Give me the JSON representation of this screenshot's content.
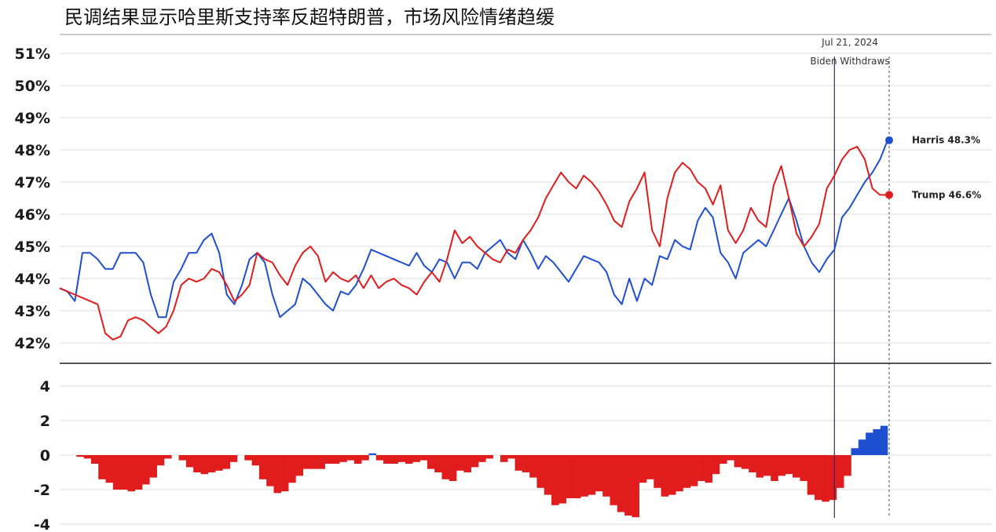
{
  "title": "民调结果显示哈里斯支持率反超特朗普，市场风险情绪趋缓",
  "chart_data": [
    {
      "type": "line",
      "title": "民调结果显示哈里斯支持率反超特朗普，市场风险情绪趋缓",
      "ylim": [
        42,
        51
      ],
      "yticks": [
        "51%",
        "50%",
        "49%",
        "48%",
        "47%",
        "46%",
        "45%",
        "44%",
        "43%",
        "42%"
      ],
      "grid": true,
      "x_points": 110,
      "annotation": {
        "date": "Jul 21, 2024",
        "label": "Biden Withdraws",
        "index": 102
      },
      "series": [
        {
          "name": "Harris",
          "color": "#1f4fd1",
          "end_label": "Harris 48.3%",
          "values": [
            43.7,
            43.6,
            43.3,
            44.8,
            44.8,
            44.6,
            44.3,
            44.3,
            44.8,
            44.8,
            44.8,
            44.5,
            43.5,
            42.8,
            42.8,
            43.9,
            44.3,
            44.8,
            44.8,
            45.2,
            45.4,
            44.8,
            43.5,
            43.2,
            43.8,
            44.6,
            44.8,
            44.5,
            43.5,
            42.8,
            43.0,
            43.2,
            44.0,
            43.8,
            43.5,
            43.2,
            43.0,
            43.6,
            43.5,
            43.8,
            44.3,
            44.9,
            44.8,
            44.7,
            44.6,
            44.5,
            44.4,
            44.8,
            44.4,
            44.2,
            44.6,
            44.5,
            44.0,
            44.5,
            44.5,
            44.3,
            44.8,
            45.0,
            45.2,
            44.8,
            44.6,
            45.2,
            44.8,
            44.3,
            44.7,
            44.5,
            44.2,
            43.9,
            44.3,
            44.7,
            44.6,
            44.5,
            44.2,
            43.5,
            43.2,
            44.0,
            43.3,
            44.0,
            43.8,
            44.7,
            44.6,
            45.2,
            45.0,
            44.9,
            45.8,
            46.2,
            45.9,
            44.8,
            44.5,
            44.0,
            44.8,
            45.0,
            45.2,
            45.0,
            45.5,
            46.0,
            46.5,
            45.8,
            45.0,
            44.5,
            44.2,
            44.6,
            44.9,
            45.9,
            46.2,
            46.6,
            47.0,
            47.3,
            47.7,
            48.3
          ],
          "final": 48.3
        },
        {
          "name": "Trump",
          "color": "#e01c1c",
          "end_label": "Trump 46.6%",
          "values": [
            43.7,
            43.6,
            43.5,
            43.4,
            43.3,
            43.2,
            42.3,
            42.1,
            42.2,
            42.7,
            42.8,
            42.7,
            42.5,
            42.3,
            42.5,
            43.0,
            43.8,
            44.0,
            43.9,
            44.0,
            44.3,
            44.2,
            43.8,
            43.3,
            43.5,
            43.8,
            44.8,
            44.6,
            44.5,
            44.1,
            43.8,
            44.4,
            44.8,
            45.0,
            44.7,
            43.9,
            44.2,
            44.0,
            43.9,
            44.1,
            43.7,
            44.1,
            43.7,
            43.9,
            44.0,
            43.8,
            43.7,
            43.5,
            43.9,
            44.2,
            43.9,
            44.6,
            45.5,
            45.1,
            45.3,
            45.0,
            44.8,
            44.6,
            44.5,
            44.9,
            44.8,
            45.2,
            45.5,
            45.9,
            46.5,
            46.9,
            47.3,
            47.0,
            46.8,
            47.2,
            47.0,
            46.7,
            46.3,
            45.8,
            45.6,
            46.4,
            46.8,
            47.3,
            45.5,
            45.0,
            46.5,
            47.3,
            47.6,
            47.4,
            47.0,
            46.8,
            46.3,
            46.9,
            45.5,
            45.1,
            45.5,
            46.2,
            45.8,
            45.6,
            46.9,
            47.5,
            46.5,
            45.4,
            45.0,
            45.3,
            45.7,
            46.8,
            47.2,
            47.7,
            48.0,
            48.1,
            47.7,
            46.8,
            46.6,
            46.6
          ],
          "final": 46.6
        }
      ]
    },
    {
      "type": "bar",
      "ylim": [
        -4,
        4
      ],
      "yticks": [
        "4",
        "2",
        "0",
        "-2",
        "-4"
      ],
      "grid": true,
      "colors": {
        "positive": "#1f4fd1",
        "negative": "#e01c1c"
      },
      "values": [
        0.0,
        -0.1,
        -0.2,
        -0.5,
        -1.4,
        -1.6,
        -2.0,
        -2.0,
        -2.1,
        -2.0,
        -1.7,
        -1.3,
        -0.6,
        -0.2,
        0.0,
        -0.3,
        -0.7,
        -1.0,
        -1.1,
        -1.0,
        -0.9,
        -0.8,
        -0.4,
        0.0,
        -0.3,
        -0.6,
        -1.4,
        -1.8,
        -2.2,
        -2.1,
        -1.6,
        -1.2,
        -0.8,
        -0.8,
        -0.8,
        -0.5,
        -0.5,
        -0.4,
        -0.3,
        -0.5,
        -0.3,
        0.1,
        -0.3,
        -0.5,
        -0.5,
        -0.4,
        -0.5,
        -0.4,
        -0.3,
        -0.8,
        -1.0,
        -1.4,
        -1.5,
        -0.9,
        -1.0,
        -0.7,
        -0.4,
        -0.2,
        0.0,
        -0.4,
        -0.2,
        -0.9,
        -1.0,
        -1.3,
        -1.9,
        -2.3,
        -2.9,
        -2.8,
        -2.5,
        -2.5,
        -2.4,
        -2.3,
        -2.1,
        -2.4,
        -2.9,
        -3.3,
        -3.5,
        -3.6,
        -1.6,
        -1.4,
        -1.9,
        -2.4,
        -2.3,
        -2.1,
        -1.9,
        -1.8,
        -1.5,
        -1.6,
        -1.1,
        -0.5,
        -0.3,
        -0.7,
        -0.8,
        -1.0,
        -1.3,
        -1.2,
        -1.5,
        -1.2,
        -1.1,
        -1.3,
        -1.5,
        -2.3,
        -2.6,
        -2.7,
        -2.6,
        -1.9,
        -1.2,
        0.4,
        0.9,
        1.3,
        1.5,
        1.7
      ]
    }
  ]
}
